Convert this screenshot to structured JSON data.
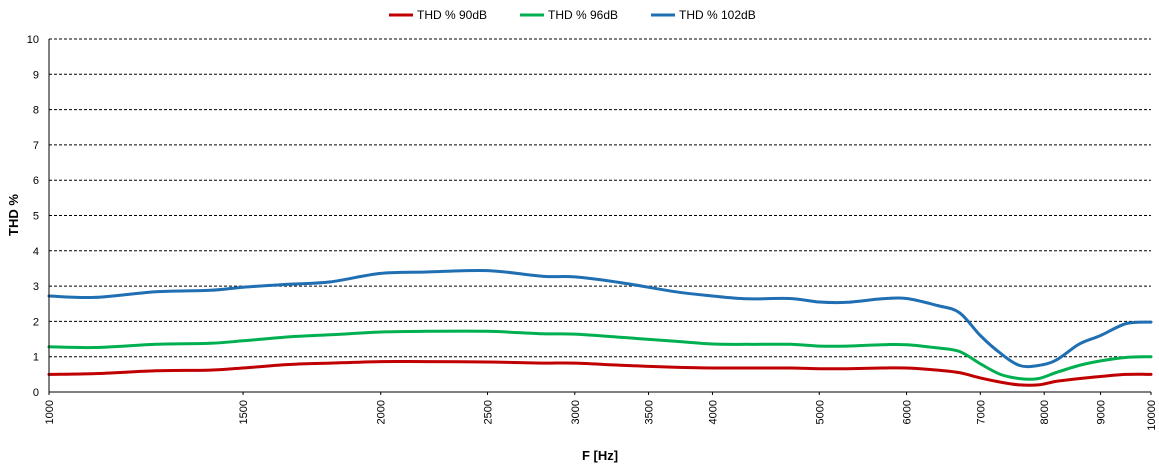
{
  "chart_data": {
    "type": "line",
    "xlabel": "F [Hz]",
    "ylabel": "THD %",
    "x_scale": "log",
    "xlim": [
      1000,
      10000
    ],
    "ylim": [
      0,
      10
    ],
    "x_ticks": [
      1000,
      1500,
      2000,
      2500,
      3000,
      3500,
      4000,
      5000,
      6000,
      7000,
      8000,
      9000,
      10000
    ],
    "x_tick_labels": [
      "1000",
      "1500",
      "2000",
      "2500",
      "3000",
      "3500",
      "4000",
      "5000",
      "6000",
      "7000",
      "8000",
      "9000",
      "10000"
    ],
    "y_ticks": [
      0,
      1,
      2,
      3,
      4,
      5,
      6,
      7,
      8,
      9,
      10
    ],
    "y_tick_labels": [
      "0",
      "1",
      "2",
      "3",
      "4",
      "5",
      "6",
      "7",
      "8",
      "9",
      "10"
    ],
    "grid": "horizontal dashed",
    "legend_position": "top",
    "x": [
      1000,
      1100,
      1250,
      1400,
      1500,
      1650,
      1800,
      2000,
      2200,
      2500,
      2800,
      3000,
      3300,
      3700,
      4000,
      4300,
      4700,
      5000,
      5300,
      5700,
      6000,
      6400,
      6700,
      7000,
      7300,
      7600,
      7900,
      8200,
      8600,
      9000,
      9500,
      10000
    ],
    "series": [
      {
        "name": "THD % 90dB",
        "color": "#c00000",
        "values": [
          0.5,
          0.52,
          0.6,
          0.62,
          0.68,
          0.78,
          0.82,
          0.86,
          0.86,
          0.85,
          0.82,
          0.82,
          0.76,
          0.7,
          0.68,
          0.68,
          0.68,
          0.66,
          0.66,
          0.68,
          0.68,
          0.62,
          0.55,
          0.4,
          0.28,
          0.2,
          0.2,
          0.3,
          0.38,
          0.44,
          0.5,
          0.5
        ]
      },
      {
        "name": "THD % 96dB",
        "color": "#00b050",
        "values": [
          1.28,
          1.26,
          1.35,
          1.38,
          1.45,
          1.56,
          1.62,
          1.7,
          1.72,
          1.72,
          1.65,
          1.64,
          1.55,
          1.44,
          1.36,
          1.35,
          1.35,
          1.3,
          1.3,
          1.34,
          1.34,
          1.25,
          1.15,
          0.8,
          0.5,
          0.38,
          0.38,
          0.55,
          0.75,
          0.88,
          0.98,
          1.0
        ]
      },
      {
        "name": "THD % 102dB",
        "color": "#1f6fb2",
        "values": [
          2.72,
          2.68,
          2.84,
          2.88,
          2.97,
          3.05,
          3.12,
          3.36,
          3.4,
          3.44,
          3.28,
          3.26,
          3.1,
          2.84,
          2.72,
          2.64,
          2.65,
          2.55,
          2.54,
          2.64,
          2.65,
          2.45,
          2.25,
          1.6,
          1.1,
          0.75,
          0.75,
          0.9,
          1.35,
          1.6,
          1.94,
          1.98
        ]
      }
    ]
  }
}
